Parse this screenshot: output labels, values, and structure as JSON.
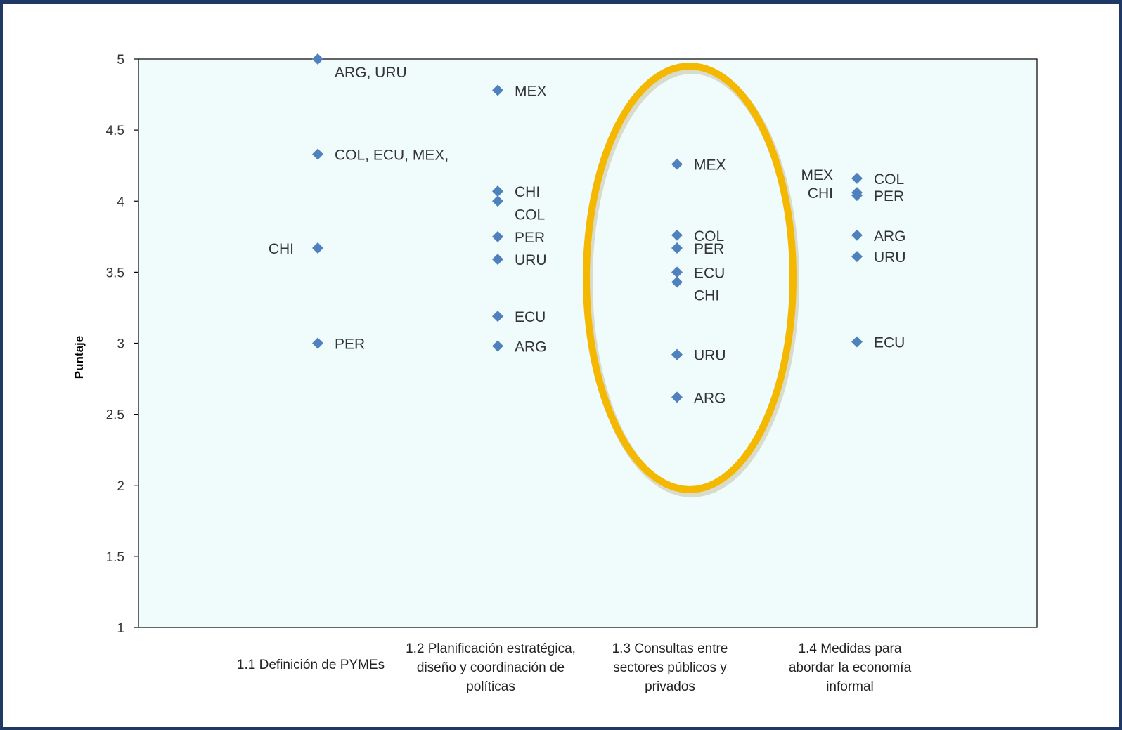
{
  "chart_data": {
    "type": "scatter",
    "ylabel": "Puntaje",
    "ylim": [
      1,
      5
    ],
    "yticks": [
      "1",
      "1.5",
      "2",
      "2.5",
      "3",
      "3.5",
      "4",
      "4.5",
      "5"
    ],
    "categories": [
      [
        "1.1 Definición de PYMEs"
      ],
      [
        "1.2 Planificación estratégica,",
        "diseño y coordinación de",
        "políticas"
      ],
      [
        "1.3 Consultas entre",
        "sectores públicos y",
        "privados"
      ],
      [
        "1.4 Medidas para",
        "abordar la economía",
        "informal"
      ]
    ],
    "points": [
      {
        "x": 1,
        "y": 5.0,
        "label": "ARG, URU",
        "label_side": "below-right"
      },
      {
        "x": 1,
        "y": 4.33,
        "label": "COL, ECU, MEX,",
        "label_side": "right"
      },
      {
        "x": 1,
        "y": 3.67,
        "label": "CHI",
        "label_side": "left"
      },
      {
        "x": 1,
        "y": 3.0,
        "label": "PER",
        "label_side": "right"
      },
      {
        "x": 2,
        "y": 4.78,
        "label": "MEX",
        "label_side": "right"
      },
      {
        "x": 2,
        "y": 4.07,
        "label": "CHI",
        "label_side": "right"
      },
      {
        "x": 2,
        "y": 4.0,
        "label": "COL",
        "label_side": "below-right"
      },
      {
        "x": 2,
        "y": 3.75,
        "label": "PER",
        "label_side": "right"
      },
      {
        "x": 2,
        "y": 3.59,
        "label": "URU",
        "label_side": "right"
      },
      {
        "x": 2,
        "y": 3.19,
        "label": "ECU",
        "label_side": "right"
      },
      {
        "x": 2,
        "y": 2.98,
        "label": "ARG",
        "label_side": "right"
      },
      {
        "x": 3,
        "y": 4.26,
        "label": "MEX",
        "label_side": "right"
      },
      {
        "x": 3,
        "y": 3.76,
        "label": "COL",
        "label_side": "right"
      },
      {
        "x": 3,
        "y": 3.67,
        "label": "PER",
        "label_side": "right"
      },
      {
        "x": 3,
        "y": 3.5,
        "label": "ECU",
        "label_side": "right"
      },
      {
        "x": 3,
        "y": 3.43,
        "label": "CHI",
        "label_side": "below-right"
      },
      {
        "x": 3,
        "y": 2.92,
        "label": "URU",
        "label_side": "right"
      },
      {
        "x": 3,
        "y": 2.62,
        "label": "ARG",
        "label_side": "right"
      },
      {
        "x": 4,
        "y": 4.16,
        "label": "COL",
        "label_side": "right"
      },
      {
        "x": 4,
        "y": 4.06,
        "label": "CHI",
        "label_side": "left"
      },
      {
        "x": 4,
        "y": 4.04,
        "label": "PER",
        "label_side": "right"
      },
      {
        "x": 4,
        "y": 3.76,
        "label": "ARG",
        "label_side": "right"
      },
      {
        "x": 4,
        "y": 3.61,
        "label": "URU",
        "label_side": "right"
      },
      {
        "x": 4,
        "y": 3.01,
        "label": "ECU",
        "label_side": "right"
      }
    ],
    "extra_labels": [
      {
        "x": 4,
        "y": 4.19,
        "label": "MEX",
        "label_side": "left"
      }
    ],
    "highlight": {
      "category": 3,
      "y_top": 4.95,
      "y_bottom": 1.97,
      "color": "#F5B800"
    },
    "colors": {
      "plot_background": "#F0FBFC",
      "marker": "#4F81BD",
      "frame": "#1F3864"
    },
    "grid": false
  }
}
